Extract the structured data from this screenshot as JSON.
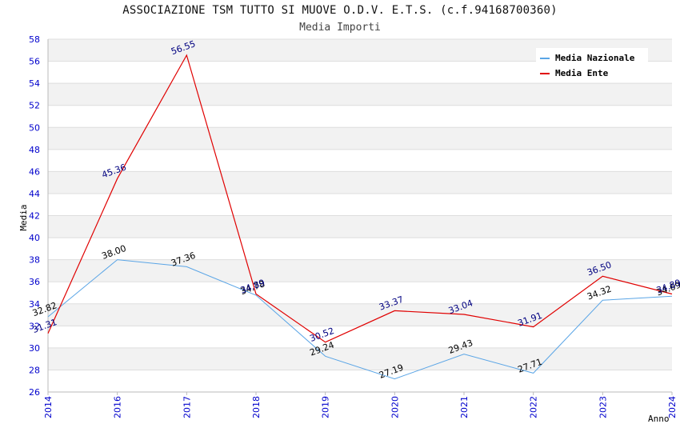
{
  "chart_data": {
    "type": "line",
    "title": "ASSOCIAZIONE TSM TUTTO SI MUOVE O.D.V. E.T.S. (c.f.94168700360)",
    "subtitle": "Media Importi",
    "xlabel": "Anno",
    "ylabel": "Media",
    "ylim": [
      26,
      58
    ],
    "ytick_step": 2,
    "grid": true,
    "legend_position": "top-right",
    "categories": [
      "2014",
      "2016",
      "2017",
      "2018",
      "2019",
      "2020",
      "2021",
      "2022",
      "2023",
      "2024"
    ],
    "series": [
      {
        "name": "Media Nazionale",
        "color": "#5aa5e6",
        "label_color": "#000000",
        "values": [
          32.82,
          38.0,
          37.36,
          34.78,
          29.24,
          27.19,
          29.43,
          27.71,
          34.32,
          34.69
        ],
        "labels": [
          "32.82",
          "38.00",
          "37.36",
          "34.78",
          "29.24",
          "27.19",
          "29.43",
          "27.71",
          "34.32",
          "34.69"
        ]
      },
      {
        "name": "Media Ente",
        "color": "#e00000",
        "label_color": "#000080",
        "values": [
          31.31,
          45.36,
          56.55,
          34.89,
          30.52,
          33.37,
          33.04,
          31.91,
          36.5,
          34.89
        ],
        "labels": [
          "31.31",
          "45.36",
          "56.55",
          "34.89",
          "30.52",
          "33.37",
          "33.04",
          "31.91",
          "36.50",
          "34.89"
        ]
      }
    ]
  }
}
